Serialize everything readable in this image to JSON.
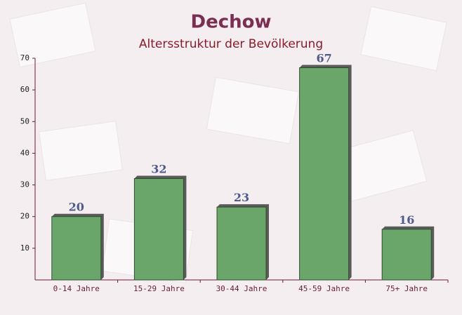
{
  "chart_data": {
    "type": "bar",
    "title": "Dechow",
    "subtitle": "Altersstruktur der Bevölkerung",
    "categories": [
      "0-14 Jahre",
      "15-29 Jahre",
      "30-44 Jahre",
      "45-59 Jahre",
      "75+ Jahre"
    ],
    "values": [
      20,
      32,
      23,
      67,
      16
    ],
    "color": "#6aa66a",
    "ylim": [
      0,
      70
    ],
    "yticks": [
      10,
      20,
      30,
      40,
      50,
      60,
      70
    ],
    "grid": false
  }
}
